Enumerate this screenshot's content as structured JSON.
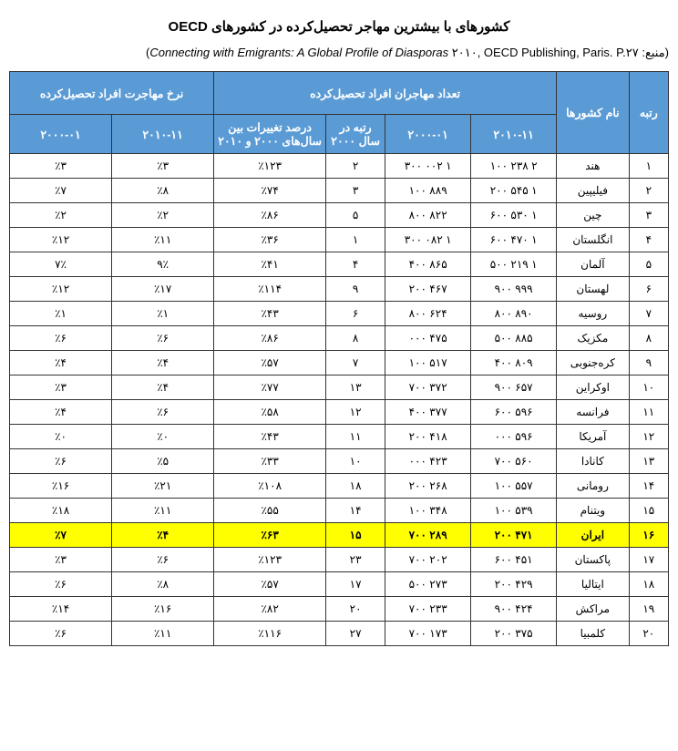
{
  "title": "کشورهای با بیشترین مهاجر تحصیل‌کرده در کشورهای OECD",
  "source_prefix": "(منبع: ",
  "source_italic": "Connecting with Emigrants: A Global Profile of Diasporas",
  "source_year": " ۲۰۱۰, ",
  "source_tail": "OECD Publishing, Paris. P.۲۷",
  "source_close": ")",
  "headers": {
    "group_rate": "نرخ مهاجرت افراد تحصیل‌کرده",
    "group_count": "تعداد مهاجران افراد تحصیل‌کرده",
    "rank": "رتبه",
    "name": "نام کشورها",
    "y2010": "۲۰۱۰-۱۱",
    "y2000": "۲۰۰۰-۰۱",
    "rank2000": "رتبه در سال ۲۰۰۰",
    "change": "درصد تغییرات بین سال‌های ۲۰۰۰ و ۲۰۱۰",
    "rate2010": "۲۰۱۰-۱۱",
    "rate2000": "۲۰۰۰-۰۱"
  },
  "rows": [
    {
      "rank": "۱",
      "name": "هند",
      "y2010": "۲ ۲۳۸ ۱۰۰",
      "y2000": "۱ ۰۰۲ ۳۰۰",
      "rank2000": "۲",
      "change": "٪۱۲۳",
      "rate2010": "٪۳",
      "rate2000": "٪۳",
      "hl": false
    },
    {
      "rank": "۲",
      "name": "فیلیپین",
      "y2010": "۱ ۵۴۵ ۲۰۰",
      "y2000": "۸۸۹ ۱۰۰",
      "rank2000": "۳",
      "change": "٪۷۴",
      "rate2010": "٪۸",
      "rate2000": "٪۷",
      "hl": false
    },
    {
      "rank": "۳",
      "name": "چین",
      "y2010": "۱ ۵۳۰ ۶۰۰",
      "y2000": "۸۲۲ ۸۰۰",
      "rank2000": "۵",
      "change": "٪۸۶",
      "rate2010": "٪۲",
      "rate2000": "٪۲",
      "hl": false
    },
    {
      "rank": "۴",
      "name": "انگلستان",
      "y2010": "۱ ۴۷۰ ۶۰۰",
      "y2000": "۱ ۰۸۲ ۳۰۰",
      "rank2000": "۱",
      "change": "٪۳۶",
      "rate2010": "٪۱۱",
      "rate2000": "٪۱۲",
      "hl": false
    },
    {
      "rank": "۵",
      "name": "آلمان",
      "y2010": "۱ ۲۱۹ ۵۰۰",
      "y2000": "۸۶۵ ۴۰۰",
      "rank2000": "۴",
      "change": "٪۴۱",
      "rate2010": "۹٪",
      "rate2000": "۷٪",
      "hl": false
    },
    {
      "rank": "۶",
      "name": "لهستان",
      "y2010": "۹۹۹ ۹۰۰",
      "y2000": "۴۶۷ ۲۰۰",
      "rank2000": "۹",
      "change": "٪۱۱۴",
      "rate2010": "٪۱۷",
      "rate2000": "٪۱۲",
      "hl": false
    },
    {
      "rank": "۷",
      "name": "روسیه",
      "y2010": "۸۹۰ ۸۰۰",
      "y2000": "۶۲۴ ۸۰۰",
      "rank2000": "۶",
      "change": "٪۴۳",
      "rate2010": "٪۱",
      "rate2000": "٪۱",
      "hl": false
    },
    {
      "rank": "۸",
      "name": "مکزیک",
      "y2010": "۸۸۵ ۵۰۰",
      "y2000": "۴۷۵ ۰۰۰",
      "rank2000": "۸",
      "change": "٪۸۶",
      "rate2010": "٪۶",
      "rate2000": "٪۶",
      "hl": false
    },
    {
      "rank": "۹",
      "name": "کره‌جنوبی",
      "y2010": "۸۰۹ ۴۰۰",
      "y2000": "۵۱۷ ۱۰۰",
      "rank2000": "۷",
      "change": "٪۵۷",
      "rate2010": "٪۴",
      "rate2000": "٪۴",
      "hl": false
    },
    {
      "rank": "۱۰",
      "name": "اوکراین",
      "y2010": "۶۵۷ ۹۰۰",
      "y2000": "۳۷۲ ۷۰۰",
      "rank2000": "۱۳",
      "change": "٪۷۷",
      "rate2010": "٪۴",
      "rate2000": "٪۳",
      "hl": false
    },
    {
      "rank": "۱۱",
      "name": "فرانسه",
      "y2010": "۵۹۶ ۶۰۰",
      "y2000": "۳۷۷ ۴۰۰",
      "rank2000": "۱۲",
      "change": "٪۵۸",
      "rate2010": "٪۶",
      "rate2000": "٪۴",
      "hl": false
    },
    {
      "rank": "۱۲",
      "name": "آمریکا",
      "y2010": "۵۹۶ ۰۰۰",
      "y2000": "۴۱۸ ۲۰۰",
      "rank2000": "۱۱",
      "change": "٪۴۳",
      "rate2010": "٪۰",
      "rate2000": "٪۰",
      "hl": false
    },
    {
      "rank": "۱۳",
      "name": "کانادا",
      "y2010": "۵۶۰ ۷۰۰",
      "y2000": "۴۲۳ ۰۰۰",
      "rank2000": "۱۰",
      "change": "٪۳۳",
      "rate2010": "٪۵",
      "rate2000": "٪۶",
      "hl": false
    },
    {
      "rank": "۱۴",
      "name": "رومانی",
      "y2010": "۵۵۷ ۱۰۰",
      "y2000": "۲۶۸ ۲۰۰",
      "rank2000": "۱۸",
      "change": "٪۱۰۸",
      "rate2010": "٪۲۱",
      "rate2000": "٪۱۶",
      "hl": false
    },
    {
      "rank": "۱۵",
      "name": "ویتنام",
      "y2010": "۵۳۹ ۱۰۰",
      "y2000": "۳۴۸ ۱۰۰",
      "rank2000": "۱۴",
      "change": "٪۵۵",
      "rate2010": "٪۱۱",
      "rate2000": "٪۱۸",
      "hl": false
    },
    {
      "rank": "۱۶",
      "name": "ایران",
      "y2010": "۴۷۱ ۲۰۰",
      "y2000": "۲۸۹ ۷۰۰",
      "rank2000": "۱۵",
      "change": "٪۶۳",
      "rate2010": "٪۴",
      "rate2000": "٪۷",
      "hl": true
    },
    {
      "rank": "۱۷",
      "name": "پاکستان",
      "y2010": "۴۵۱ ۶۰۰",
      "y2000": "۲۰۲ ۷۰۰",
      "rank2000": "۲۳",
      "change": "٪۱۲۳",
      "rate2010": "٪۶",
      "rate2000": "٪۳",
      "hl": false
    },
    {
      "rank": "۱۸",
      "name": "ایتالیا",
      "y2010": "۴۲۹ ۲۰۰",
      "y2000": "۲۷۳ ۵۰۰",
      "rank2000": "۱۷",
      "change": "٪۵۷",
      "rate2010": "٪۸",
      "rate2000": "٪۶",
      "hl": false
    },
    {
      "rank": "۱۹",
      "name": "مراکش",
      "y2010": "۴۲۴ ۹۰۰",
      "y2000": "۲۳۳ ۷۰۰",
      "rank2000": "۲۰",
      "change": "٪۸۲",
      "rate2010": "٪۱۶",
      "rate2000": "٪۱۴",
      "hl": false
    },
    {
      "rank": "۲۰",
      "name": "کلمبیا",
      "y2010": "۳۷۵ ۲۰۰",
      "y2000": "۱۷۳ ۷۰۰",
      "rank2000": "۲۷",
      "change": "٪۱۱۶",
      "rate2010": "٪۱۱",
      "rate2000": "٪۶",
      "hl": false
    }
  ]
}
